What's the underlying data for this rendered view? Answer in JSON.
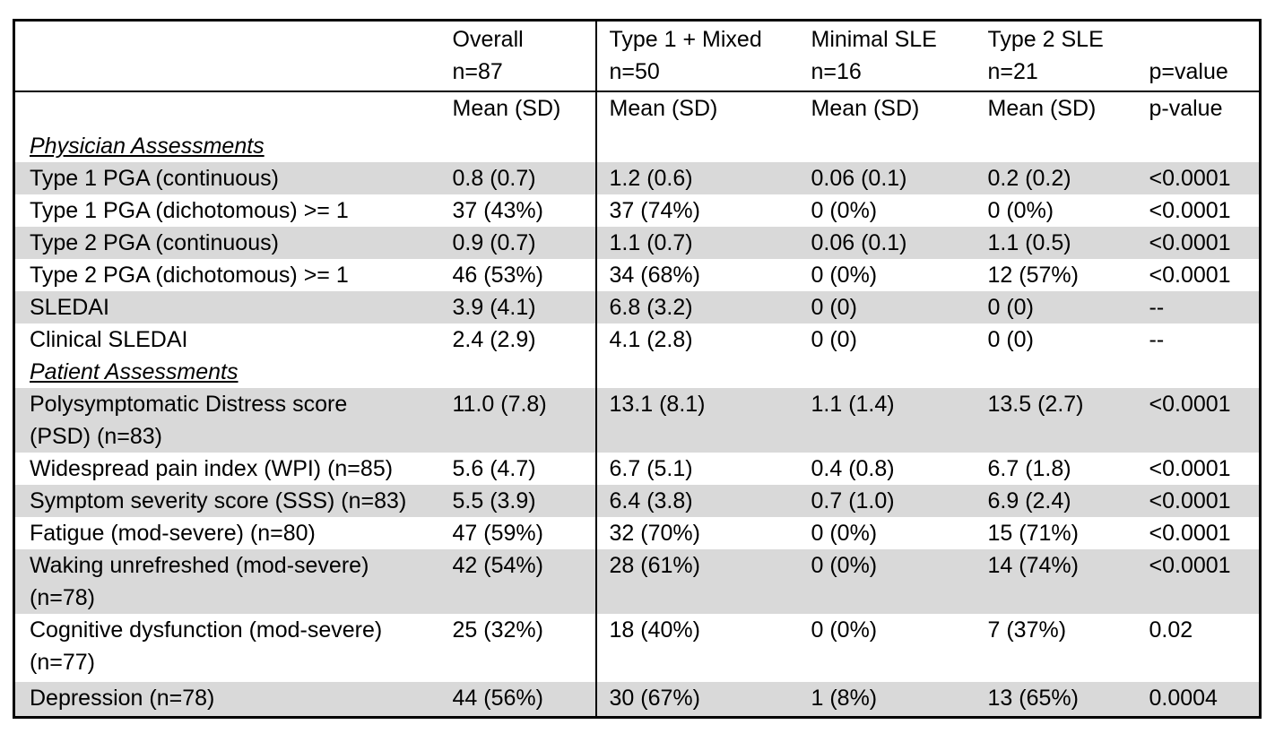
{
  "table": {
    "header1": [
      "",
      "Overall\nn=87",
      "Type 1 + Mixed\nn=50",
      "Minimal SLE\nn=16",
      "Type 2 SLE\nn=21",
      "p=value"
    ],
    "header2": [
      "",
      "Mean (SD)",
      "Mean (SD)",
      "Mean (SD)",
      "Mean (SD)",
      "p-value"
    ],
    "rows": [
      {
        "type": "section",
        "cells": [
          "Physician Assessments",
          "",
          "",
          "",
          "",
          ""
        ]
      },
      {
        "type": "data",
        "cells": [
          "Type 1 PGA (continuous)",
          "0.8 (0.7)",
          "1.2 (0.6)",
          "0.06 (0.1)",
          "0.2 (0.2)",
          "<0.0001"
        ]
      },
      {
        "type": "data",
        "cells": [
          "Type 1 PGA (dichotomous) >= 1",
          "37 (43%)",
          "37 (74%)",
          "0 (0%)",
          "0 (0%)",
          "<0.0001"
        ]
      },
      {
        "type": "data",
        "cells": [
          "Type 2 PGA (continuous)",
          "0.9 (0.7)",
          "1.1 (0.7)",
          "0.06 (0.1)",
          "1.1 (0.5)",
          "<0.0001"
        ]
      },
      {
        "type": "data",
        "cells": [
          "Type 2 PGA (dichotomous) >= 1",
          "46 (53%)",
          "34 (68%)",
          "0 (0%)",
          "12 (57%)",
          "<0.0001"
        ]
      },
      {
        "type": "data",
        "cells": [
          "SLEDAI",
          "3.9 (4.1)",
          "6.8 (3.2)",
          "0 (0)",
          "0 (0)",
          "--"
        ]
      },
      {
        "type": "data",
        "cells": [
          "Clinical SLEDAI",
          "2.4 (2.9)",
          "4.1 (2.8)",
          "0 (0)",
          "0 (0)",
          "--"
        ]
      },
      {
        "type": "section",
        "cells": [
          "Patient Assessments",
          "",
          "",
          "",
          "",
          ""
        ]
      },
      {
        "type": "data",
        "cells": [
          "Polysymptomatic Distress score\n(PSD) (n=83)",
          "11.0 (7.8)",
          "13.1 (8.1)",
          "1.1 (1.4)",
          "13.5 (2.7)",
          "<0.0001"
        ]
      },
      {
        "type": "data",
        "cells": [
          "Widespread pain index (WPI) (n=85)",
          "5.6 (4.7)",
          "6.7 (5.1)",
          "0.4 (0.8)",
          "6.7 (1.8)",
          "<0.0001"
        ]
      },
      {
        "type": "data",
        "cells": [
          "Symptom severity score (SSS) (n=83)",
          "5.5 (3.9)",
          "6.4 (3.8)",
          "0.7 (1.0)",
          "6.9 (2.4)",
          "<0.0001"
        ]
      },
      {
        "type": "data",
        "cells": [
          "Fatigue (mod-severe) (n=80)",
          "47 (59%)",
          "32 (70%)",
          "0 (0%)",
          "15 (71%)",
          "<0.0001"
        ]
      },
      {
        "type": "data",
        "cells": [
          "Waking unrefreshed (mod-severe)\n(n=78)",
          "42 (54%)",
          "28 (61%)",
          "0 (0%)",
          "14 (74%)",
          "<0.0001"
        ]
      },
      {
        "type": "data",
        "cells": [
          "Cognitive dysfunction (mod-severe)\n(n=77)",
          "25 (32%)",
          "18 (40%)",
          "0 (0%)",
          "7 (37%)",
          "0.02"
        ]
      },
      {
        "type": "data",
        "cells": [
          "Depression (n=78)",
          "44 (56%)",
          "30 (67%)",
          "1 (8%)",
          "13 (65%)",
          "0.0004"
        ]
      }
    ]
  }
}
